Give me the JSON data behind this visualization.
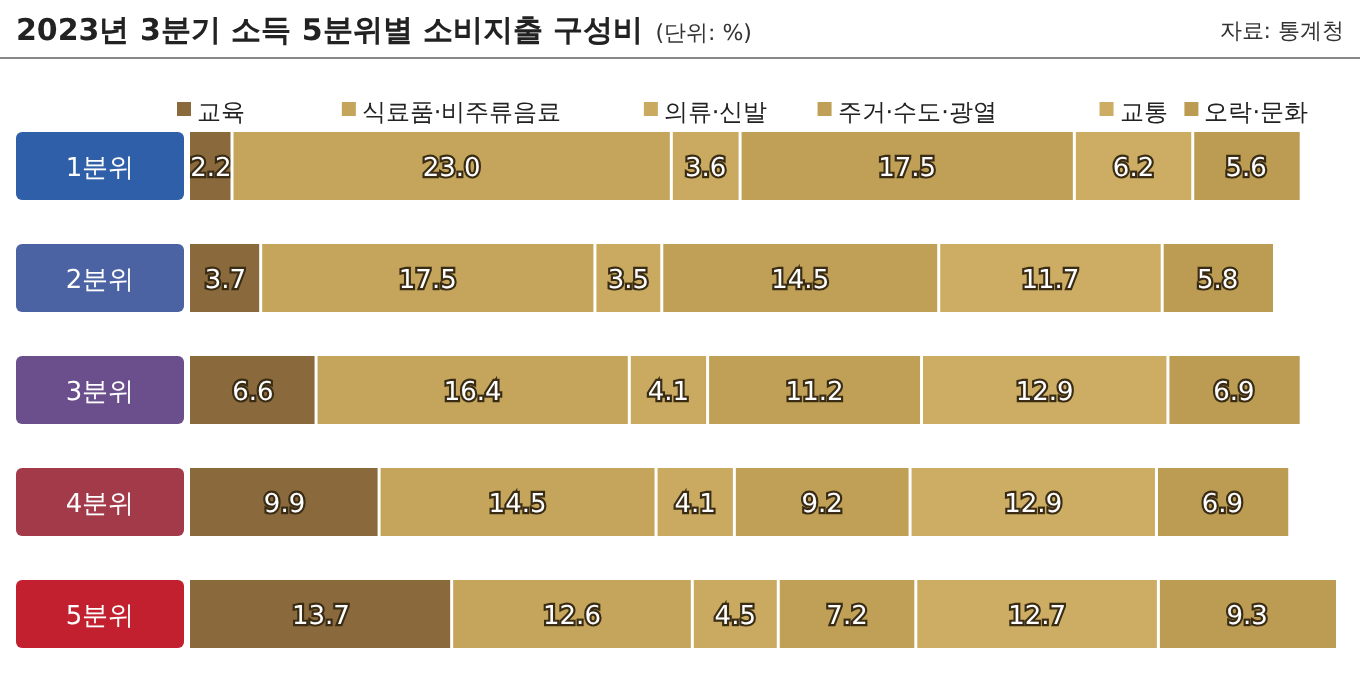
{
  "chart_data": {
    "type": "bar",
    "orientation": "horizontal",
    "stacked": true,
    "legend": "top",
    "title": "2023년 3분기 소득 5분위별 소비지출 구성비",
    "subtitle": "(단위: %)",
    "annotations": [
      "자료: 통계청"
    ],
    "categories": [
      "1분위",
      "2분위",
      "3분위",
      "4분위",
      "5분위"
    ],
    "series": [
      {
        "name": "교육",
        "color": "#8a6a3c",
        "values": [
          2.2,
          3.7,
          6.6,
          9.9,
          13.7
        ],
        "value_labels": [
          "2.2",
          "3.7",
          "6.6",
          "9.9",
          "13.7"
        ]
      },
      {
        "name": "식료품·비주류음료",
        "color": "#c4a55b",
        "values": [
          23.0,
          17.5,
          16.4,
          14.5,
          12.6
        ],
        "value_labels": [
          "23.0",
          "17.5",
          "16.4",
          "14.5",
          "12.6"
        ]
      },
      {
        "name": "의류·신발",
        "color": "#c9aa60",
        "values": [
          3.6,
          3.5,
          4.1,
          4.1,
          4.5
        ],
        "value_labels": [
          "3.6",
          "3.5",
          "4.1",
          "4.1",
          "4.5"
        ]
      },
      {
        "name": "주거·수도·광열",
        "color": "#bfa056",
        "values": [
          17.5,
          14.5,
          11.2,
          9.2,
          7.2
        ],
        "value_labels": [
          "17.5",
          "14.5",
          "11.2",
          "9.2",
          "7.2"
        ]
      },
      {
        "name": "교통",
        "color": "#ccad63",
        "values": [
          6.2,
          11.7,
          12.9,
          12.9,
          12.7
        ],
        "value_labels": [
          "6.2",
          "11.7",
          "12.9",
          "12.9",
          "12.7"
        ]
      },
      {
        "name": "오락·문화",
        "color": "#bb9c52",
        "values": [
          5.6,
          5.8,
          6.9,
          6.9,
          9.3
        ],
        "value_labels": [
          "5.6",
          "5.8",
          "6.9",
          "6.9",
          "9.3"
        ]
      }
    ]
  }
}
